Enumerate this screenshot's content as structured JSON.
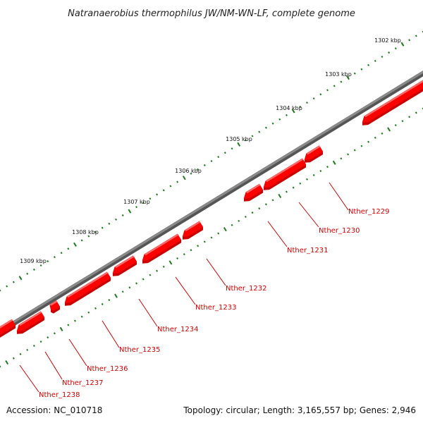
{
  "title": "Natranaerobius thermophilus JW/NM-WN-LF, complete genome",
  "footer": {
    "accession": "Accession: NC_010718",
    "summary": "Topology: circular; Length: 3,165,557 bp; Genes: 2,946"
  },
  "colors": {
    "backbone": "#8a8a8a",
    "gene": "#ff0000",
    "gene_side": "#c80000",
    "tick": "#1e7a1e",
    "label": "#d40000"
  },
  "scale_labels": [
    "1302 kbp",
    "1303 kbp",
    "1304 kbp",
    "1305 kbp",
    "1306 kbp",
    "1307 kbp",
    "1308 kbp",
    "1309 kbp"
  ],
  "genes": [
    {
      "label": "Nther_1229"
    },
    {
      "label": "Nther_1230"
    },
    {
      "label": "Nther_1231"
    },
    {
      "label": "Nther_1232"
    },
    {
      "label": "Nther_1233"
    },
    {
      "label": "Nther_1234"
    },
    {
      "label": "Nther_1235"
    },
    {
      "label": "Nther_1236"
    },
    {
      "label": "Nther_1237"
    },
    {
      "label": "Nther_1238"
    }
  ]
}
